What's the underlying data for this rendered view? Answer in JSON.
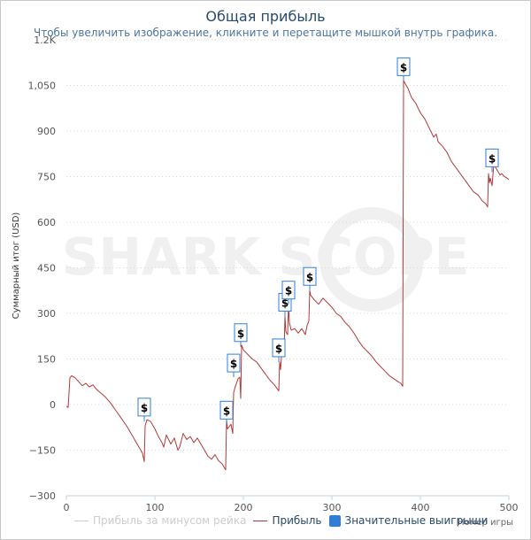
{
  "chart": {
    "title": "Общая прибыль",
    "subtitle": "Чтобы увеличить изображение, кликните и перетащите мышкой внутрь графика.",
    "watermark": "SHARK SCOPE",
    "legend": {
      "rake_label": "Прибыль за минусом рейка",
      "profit_label": "Прибыль",
      "wins_label": "Значительные выигрыши"
    },
    "marker_symbol": "$"
  },
  "chart_data": {
    "type": "line",
    "title": "Общая прибыль",
    "xlabel": "Номер игры",
    "ylabel": "Суммарный итог (USD)",
    "xlim": [
      0,
      500
    ],
    "ylim": [
      -300,
      1200
    ],
    "x_ticks": [
      0,
      100,
      200,
      300,
      400,
      500
    ],
    "y_ticks": [
      {
        "value": -300,
        "label": "−300"
      },
      {
        "value": -150,
        "label": "−150"
      },
      {
        "value": 0,
        "label": "0"
      },
      {
        "value": 150,
        "label": "150"
      },
      {
        "value": 300,
        "label": "300"
      },
      {
        "value": 450,
        "label": "450"
      },
      {
        "value": 600,
        "label": "600"
      },
      {
        "value": 750,
        "label": "750"
      },
      {
        "value": 900,
        "label": "900"
      },
      {
        "value": 1050,
        "label": "1,050"
      },
      {
        "value": 1200,
        "label": "1.2K"
      }
    ],
    "grid": true,
    "legend_position": "bottom",
    "colors": {
      "profit": "#b33a3a",
      "rake": "#cccccc",
      "wins": "#2f7ed8",
      "grid": "#d8d8d8"
    },
    "series": [
      {
        "name": "Прибыль",
        "x": [
          0,
          2,
          4,
          6,
          10,
          14,
          18,
          22,
          26,
          30,
          34,
          38,
          44,
          50,
          56,
          62,
          68,
          74,
          80,
          86,
          88,
          89,
          91,
          95,
          100,
          104,
          108,
          110,
          113,
          118,
          122,
          126,
          128,
          132,
          136,
          140,
          144,
          148,
          152,
          156,
          160,
          164,
          168,
          172,
          176,
          178,
          180,
          181,
          182,
          186,
          188,
          189,
          191,
          194,
          196,
          197,
          198,
          200,
          205,
          210,
          215,
          220,
          225,
          230,
          235,
          240,
          241,
          242,
          244,
          246,
          247,
          248,
          250,
          251,
          252,
          254,
          258,
          262,
          266,
          270,
          272,
          274,
          275,
          276,
          280,
          285,
          290,
          295,
          300,
          305,
          310,
          315,
          320,
          325,
          330,
          335,
          340,
          345,
          350,
          355,
          360,
          365,
          370,
          375,
          378,
          380,
          381,
          383,
          386,
          390,
          395,
          400,
          405,
          410,
          415,
          418,
          420,
          425,
          430,
          435,
          440,
          445,
          450,
          455,
          460,
          465,
          470,
          474,
          476,
          477,
          478,
          479,
          481,
          483,
          486,
          490,
          492,
          495,
          498,
          500
        ],
        "y": [
          -5,
          -10,
          88,
          95,
          88,
          75,
          62,
          70,
          58,
          65,
          50,
          40,
          25,
          5,
          -20,
          -45,
          -70,
          -100,
          -130,
          -160,
          -188,
          -70,
          -50,
          -55,
          -80,
          -105,
          -125,
          -140,
          -100,
          -130,
          -110,
          -150,
          -140,
          -95,
          -115,
          -105,
          -125,
          -110,
          -130,
          -150,
          -170,
          -180,
          -165,
          -185,
          -195,
          -205,
          -215,
          -50,
          -80,
          -65,
          -95,
          40,
          60,
          85,
          90,
          20,
          195,
          180,
          165,
          150,
          140,
          120,
          100,
          80,
          65,
          45,
          140,
          115,
          200,
          170,
          290,
          240,
          230,
          330,
          270,
          245,
          250,
          235,
          250,
          230,
          260,
          275,
          375,
          360,
          345,
          330,
          350,
          335,
          320,
          300,
          290,
          270,
          255,
          235,
          210,
          190,
          175,
          160,
          140,
          125,
          110,
          95,
          85,
          75,
          70,
          60,
          1065,
          1055,
          1040,
          1010,
          990,
          960,
          940,
          910,
          880,
          890,
          865,
          850,
          830,
          800,
          780,
          760,
          740,
          720,
          700,
          690,
          670,
          660,
          650,
          760,
          730,
          745,
          720,
          790,
          775,
          755,
          760,
          750,
          745,
          740
        ]
      }
    ],
    "significant_wins": [
      {
        "x": 88,
        "y": -55
      },
      {
        "x": 181,
        "y": -65
      },
      {
        "x": 189,
        "y": 90
      },
      {
        "x": 197,
        "y": 190
      },
      {
        "x": 240,
        "y": 140
      },
      {
        "x": 247,
        "y": 290
      },
      {
        "x": 251,
        "y": 330
      },
      {
        "x": 275,
        "y": 375
      },
      {
        "x": 381,
        "y": 1065
      },
      {
        "x": 481,
        "y": 765
      }
    ]
  }
}
